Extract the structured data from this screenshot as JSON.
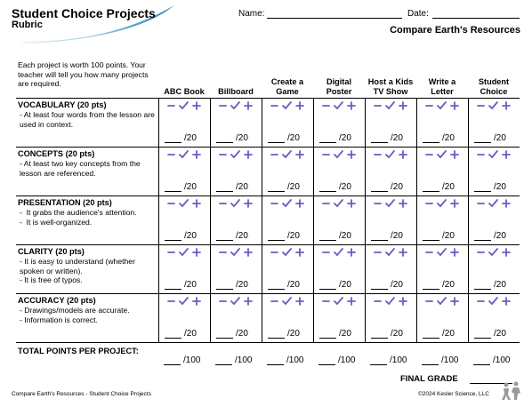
{
  "header": {
    "title": "Student Choice Projects",
    "subtitle": "Rubric",
    "name_label": "Name:",
    "date_label": "Date:",
    "topic": "Compare Earth's Resources"
  },
  "table": {
    "intro": "Each project is worth 100 points. Your teacher will tell you how many projects are required.",
    "columns": [
      "ABC Book",
      "Billboard",
      "Create a Game",
      "Digital Poster",
      "Host a Kids TV Show",
      "Write a Letter",
      "Student Choice"
    ],
    "rows": [
      {
        "title": "VOCABULARY (20 pts)",
        "bullets": [
          "- At least four words from the lesson are used in context."
        ]
      },
      {
        "title": "CONCEPTS (20 pts)",
        "bullets": [
          "- At least two key concepts from the lesson are referenced."
        ]
      },
      {
        "title": "PRESENTATION (20 pts)",
        "bullets": [
          "-  It grabs the audience's attention.",
          "-  It is well-organized."
        ]
      },
      {
        "title": "CLARITY (20 pts)",
        "bullets": [
          "- It is easy to understand (whether spoken or written).",
          "- It is free of typos."
        ]
      },
      {
        "title": "ACCURACY (20 pts)",
        "bullets": [
          "- Drawings/models are accurate.",
          "- Information is correct."
        ]
      }
    ],
    "score_label": "/20",
    "total_title": "TOTAL POINTS PER PROJECT:",
    "total_label": "/100",
    "final_grade": "FINAL GRADE"
  },
  "footer": {
    "left": "Compare Earth's Resources - Student Choice Projects",
    "right": "©2024  Kesler Science, LLC"
  }
}
